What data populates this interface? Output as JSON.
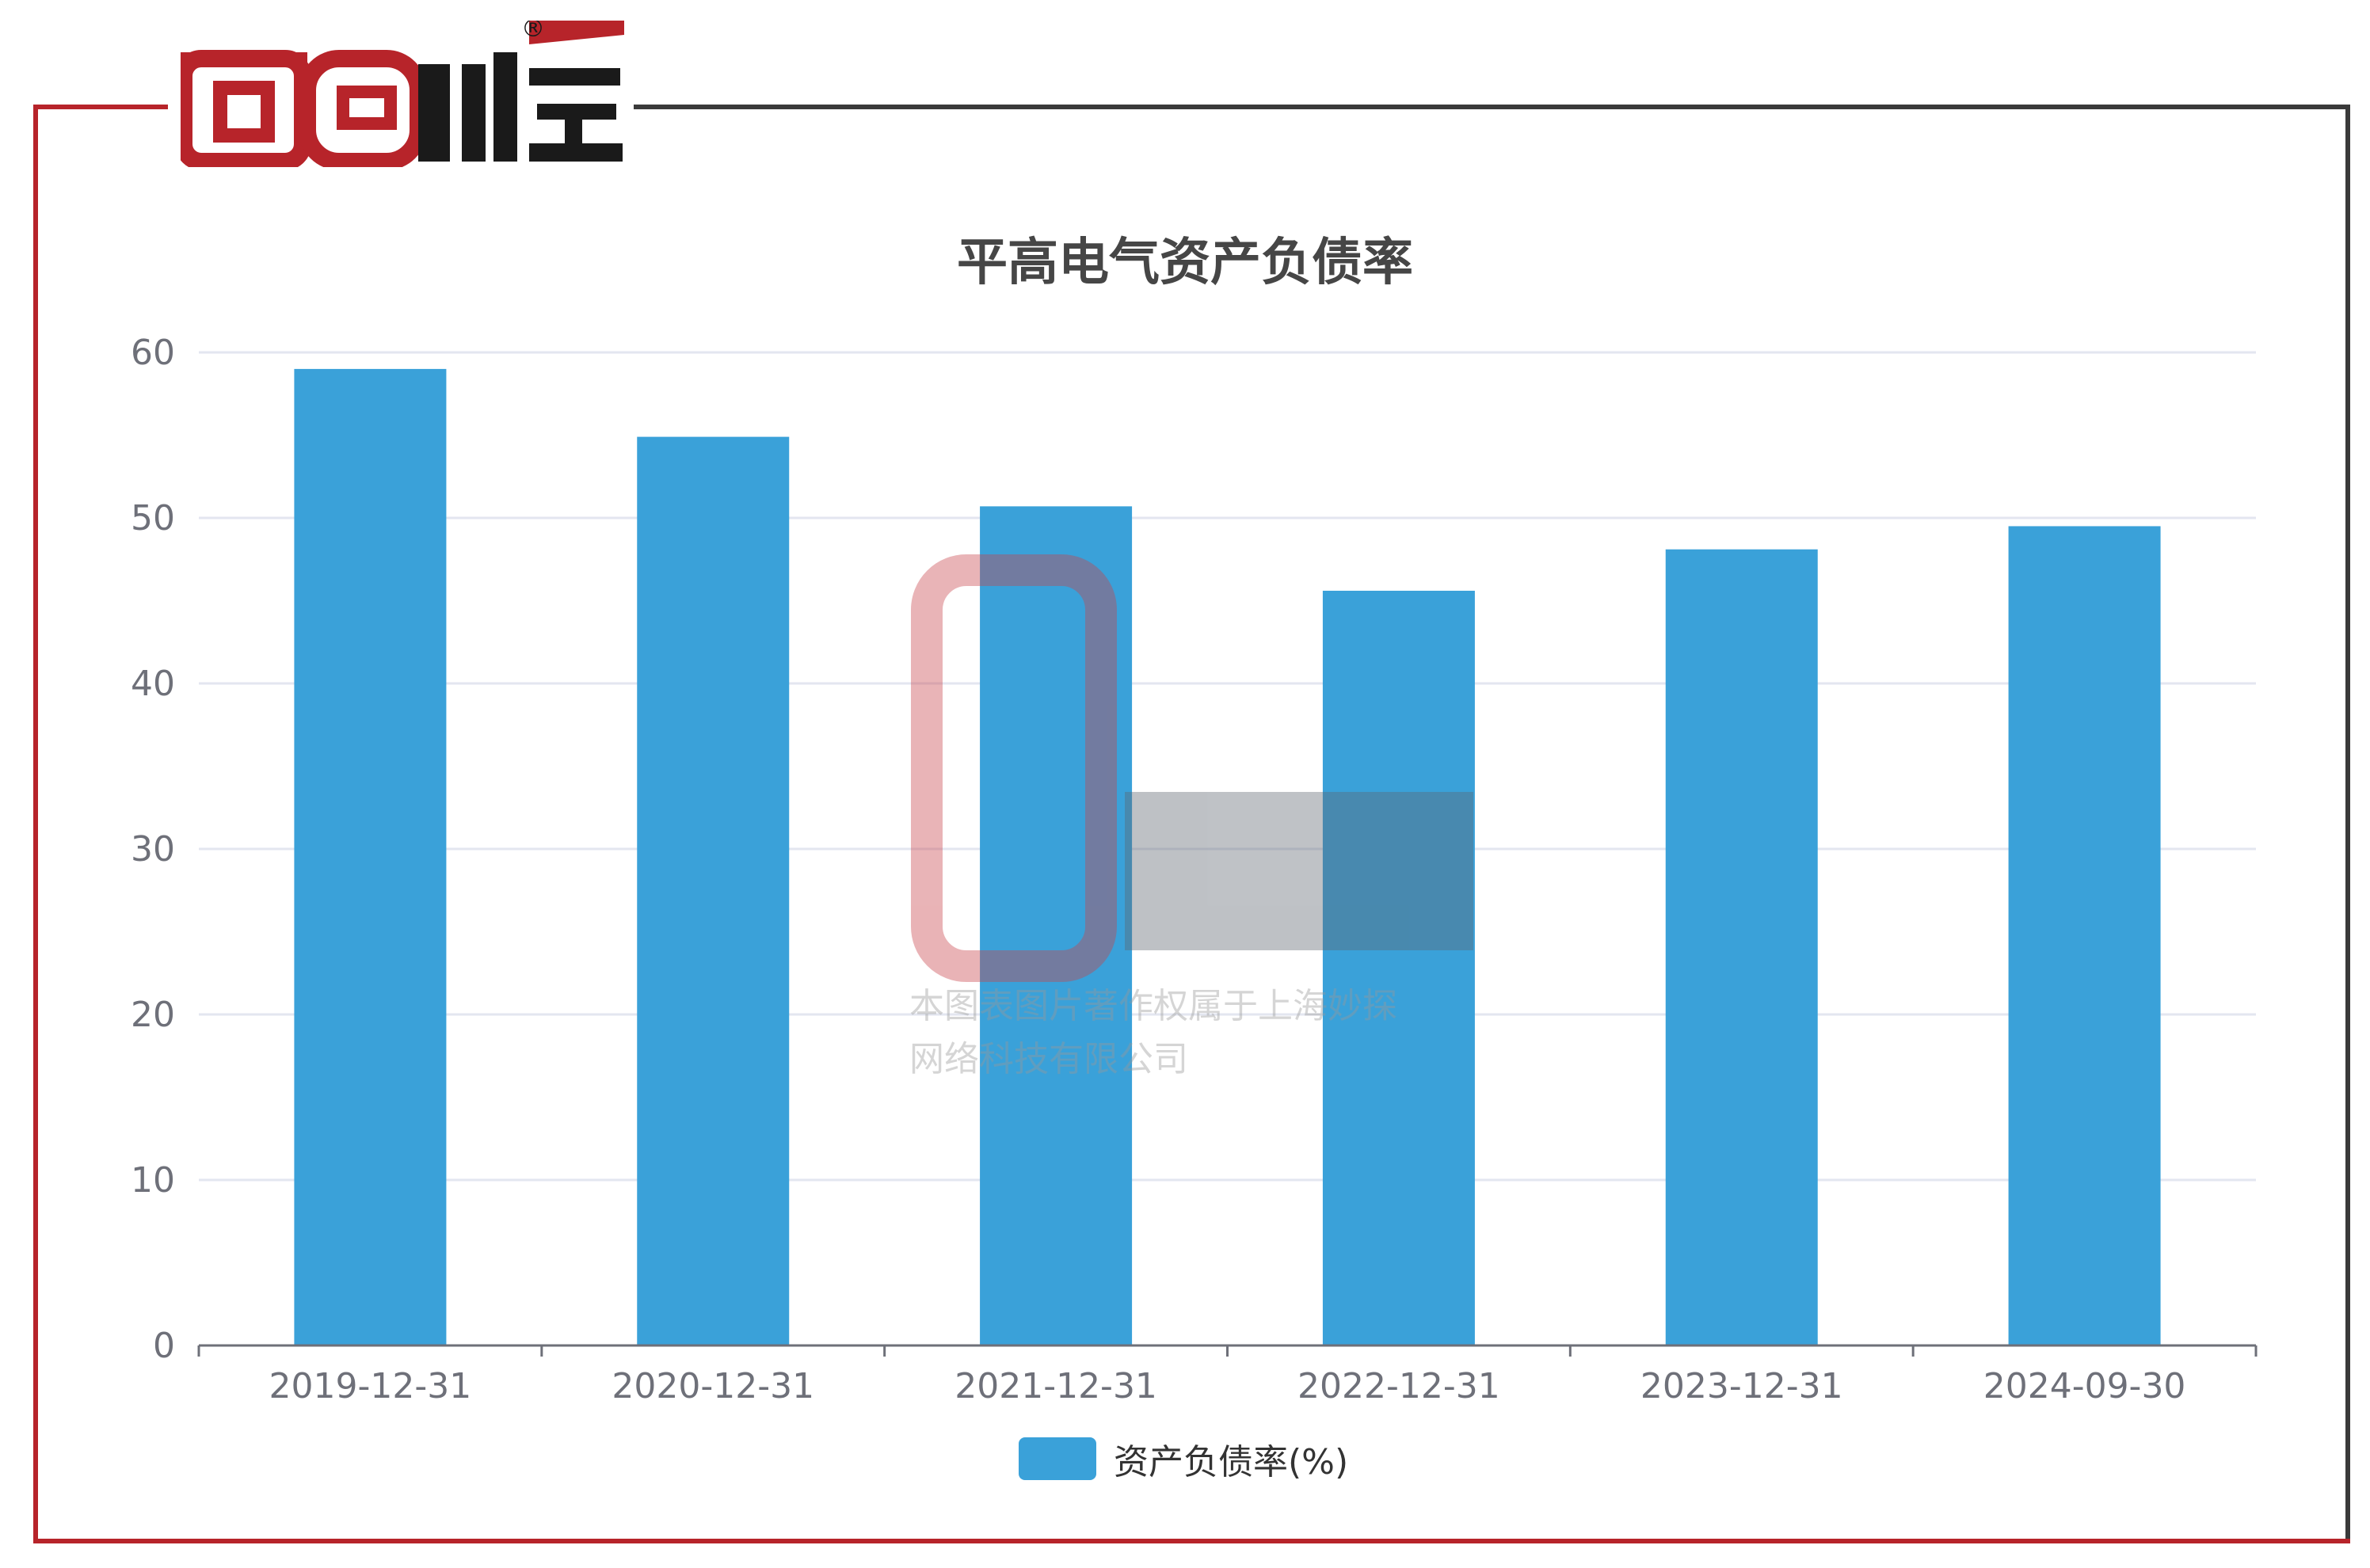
{
  "brand": {
    "logo_text": "面包财经",
    "registered_mark": "®",
    "colors": {
      "red": "#b7242a",
      "dark": "#1a1a1a"
    }
  },
  "watermark": {
    "logo_text": "面包财经",
    "line1": "本图表图片著作权属于上海妙探",
    "line2": "网络科技有限公司"
  },
  "chart_data": {
    "type": "bar",
    "title": "平高电气资产负债率",
    "categories": [
      "2019-12-31",
      "2020-12-31",
      "2021-12-31",
      "2022-12-31",
      "2023-12-31",
      "2024-09-30"
    ],
    "series": [
      {
        "name": "资产负债率(%)",
        "values": [
          59.0,
          54.9,
          50.7,
          45.6,
          48.1,
          49.5
        ],
        "color": "#3aa1d9"
      }
    ],
    "ylim": [
      0,
      60
    ],
    "yticks": [
      0,
      10,
      20,
      30,
      40,
      50,
      60
    ],
    "grid": true,
    "legend_position": "bottom"
  }
}
